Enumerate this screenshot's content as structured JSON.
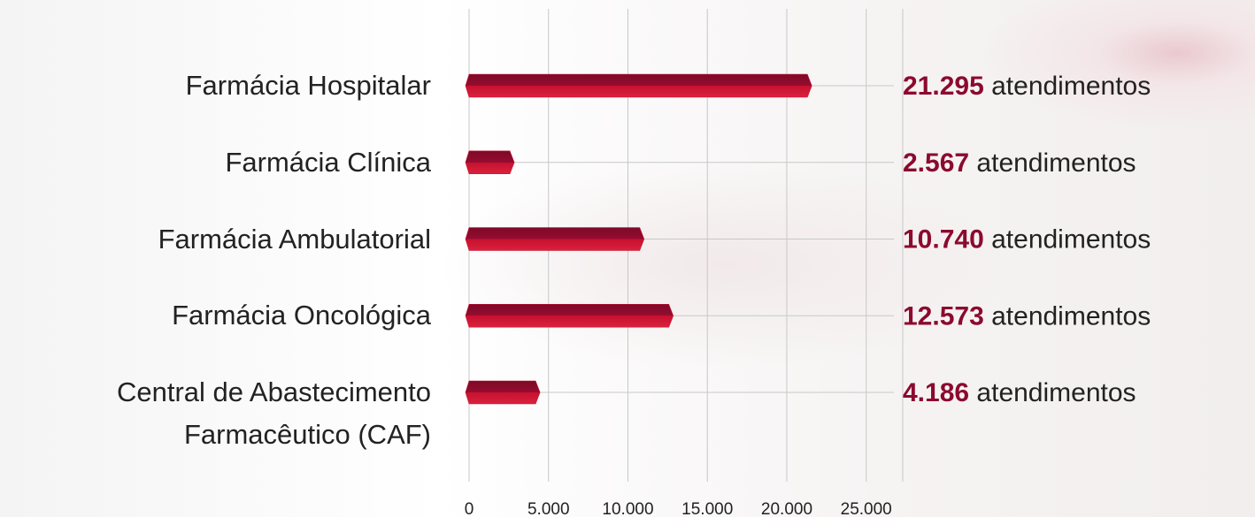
{
  "chart_data": {
    "type": "bar",
    "orientation": "horizontal",
    "categories": [
      "Farmácia Hospitalar",
      "Farmácia Clínica",
      "Farmácia Ambulatorial",
      "Farmácia Oncológica",
      "Central de Abastecimento Farmacêutico (CAF)"
    ],
    "values": [
      21295,
      2567,
      10740,
      12573,
      4186
    ],
    "value_labels": [
      "21.295",
      "2.567",
      "10.740",
      "12.573",
      "4.186"
    ],
    "unit_label": "atendimentos",
    "color": "#c8102e",
    "xlim": [
      0,
      27300
    ],
    "xticks": [
      0,
      {
        "value": 5000,
        "label": "5.000"
      },
      {
        "value": 10000,
        "label": "10.000"
      },
      {
        "value": 15000,
        "label": "15.000"
      },
      {
        "value": 20000,
        "label": "20.000"
      },
      {
        "value": 25000,
        "label": "25.000"
      }
    ],
    "grid": true
  }
}
